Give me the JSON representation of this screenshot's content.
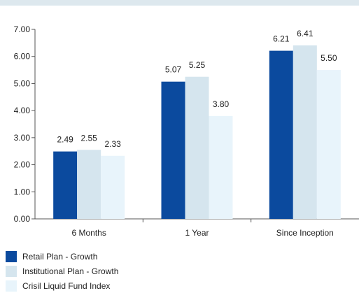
{
  "chart_data": {
    "type": "bar",
    "title": "",
    "xlabel": "",
    "ylabel": "",
    "categories": [
      "6 Months",
      "1 Year",
      "Since Inception"
    ],
    "series": [
      {
        "name": "Retail Plan - Growth",
        "color": "#0b4a9e",
        "values": [
          2.49,
          5.07,
          6.21
        ],
        "labels": [
          "2.49",
          "5.07",
          "6.21"
        ]
      },
      {
        "name": "Institutional Plan - Growth",
        "color": "#d5e5ee",
        "values": [
          2.55,
          5.25,
          6.41
        ],
        "labels": [
          "2.55",
          "5.25",
          "6.41"
        ]
      },
      {
        "name": "Crisil Liquid Fund Index",
        "color": "#e8f4fb",
        "values": [
          2.33,
          3.8,
          5.5
        ],
        "labels": [
          "2.33",
          "3.80",
          "5.50"
        ]
      }
    ],
    "ylim": [
      0,
      7
    ],
    "yticks": [
      "0.00",
      "1.00",
      "2.00",
      "3.00",
      "4.00",
      "5.00",
      "6.00",
      "7.00"
    ],
    "grid": false,
    "legend_position": "bottom-left"
  }
}
